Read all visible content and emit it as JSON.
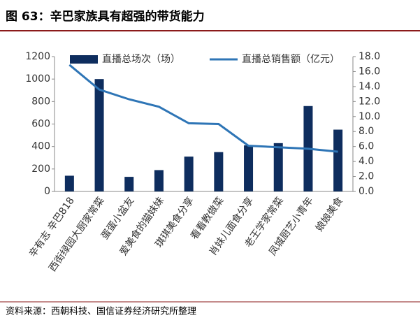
{
  "chart_data": {
    "type": "bar",
    "title": "图 63：辛巴家族具有超强的带货能力",
    "source": "资料来源：西朝科技、国信证券经济研究所整理",
    "categories": [
      "辛有志 辛巴818",
      "西街绿园大厨家常菜",
      "蛋蛋小盆友",
      "爱美食的猫妹妹",
      "琪琪美食分享",
      "看看教做菜",
      "肖妹儿面食分享",
      "老王学家常菜",
      "凤城厨艺小青年",
      "娘娘美食"
    ],
    "series": [
      {
        "name": "直播总场次（场）",
        "type": "bar",
        "color": "#0e2d5e",
        "values": [
          140,
          1000,
          130,
          190,
          310,
          350,
          410,
          430,
          760,
          550
        ]
      },
      {
        "name": "直播总销售额（亿元）",
        "type": "line",
        "axis": "y2",
        "color": "#2e75b6",
        "values": [
          16.9,
          13.6,
          12.3,
          11.3,
          9.1,
          9.0,
          6.1,
          5.9,
          5.7,
          5.3
        ]
      }
    ],
    "ylim": [
      0,
      1200
    ],
    "yticks": [
      0,
      200,
      400,
      600,
      800,
      1000,
      1200
    ],
    "y2lim": [
      0,
      18
    ],
    "y2ticks": [
      {
        "value": 0,
        "label": "0.0"
      },
      {
        "value": 2,
        "label": "2.0"
      },
      {
        "value": 4,
        "label": "4.0"
      },
      {
        "value": 6,
        "label": "6.0"
      },
      {
        "value": 8,
        "label": "8.0"
      },
      {
        "value": 10,
        "label": "10.0"
      },
      {
        "value": 12,
        "label": "12.0"
      },
      {
        "value": 14,
        "label": "14.0"
      },
      {
        "value": 16,
        "label": "16.0"
      },
      {
        "value": 18,
        "label": "18.0"
      }
    ],
    "legend": "top"
  }
}
